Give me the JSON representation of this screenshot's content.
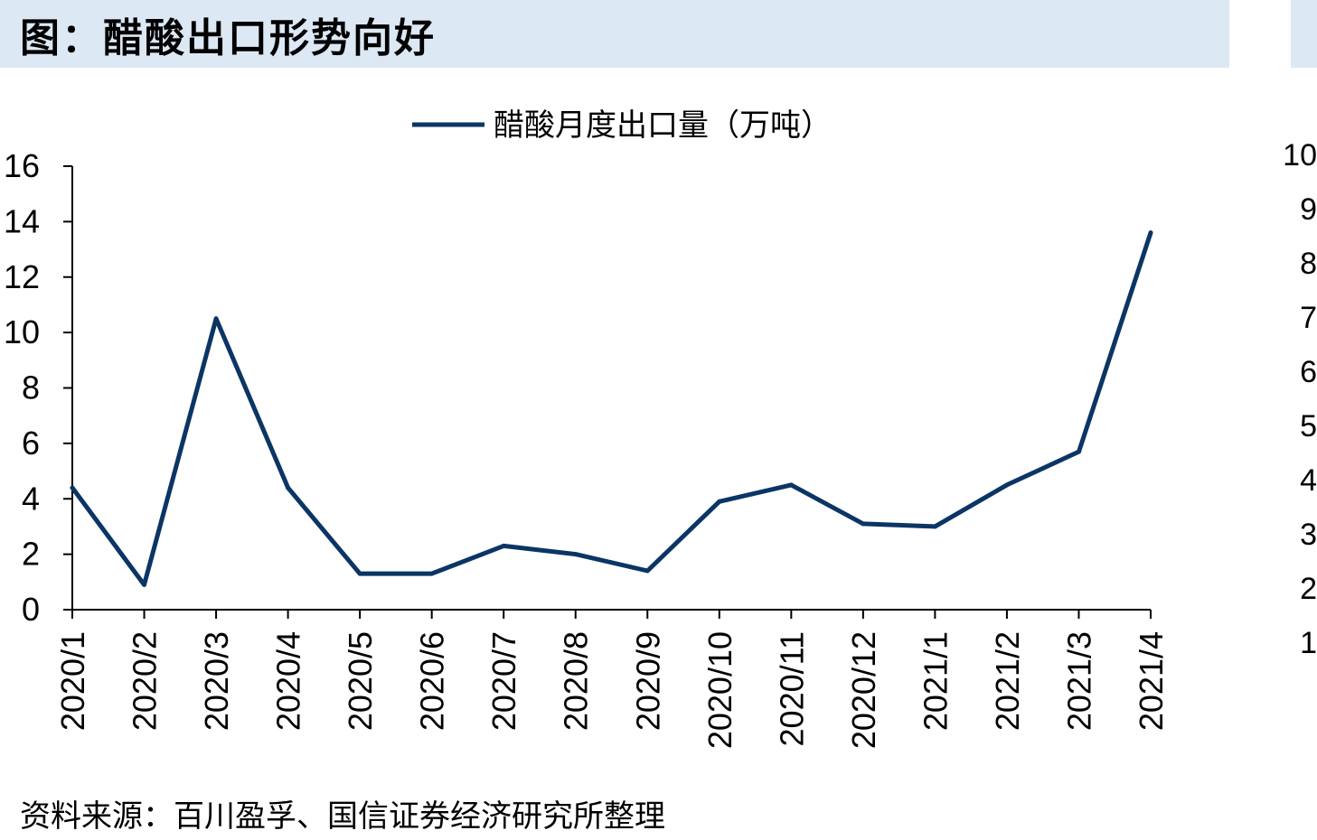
{
  "header": {
    "title": "图：醋酸出口形势向好"
  },
  "source": {
    "text": "资料来源：百川盈孚、国信证券经济研究所整理"
  },
  "colors": {
    "title_bg": "#dce8f4",
    "series": "#0b3565"
  },
  "right_axis": {
    "ticks": [
      "10",
      "9",
      "8",
      "7",
      "6",
      "5",
      "4",
      "3",
      "2",
      "1"
    ]
  },
  "chart_data": {
    "type": "line",
    "categories": [
      "2020/1",
      "2020/2",
      "2020/3",
      "2020/4",
      "2020/5",
      "2020/6",
      "2020/7",
      "2020/8",
      "2020/9",
      "2020/10",
      "2020/11",
      "2020/12",
      "2021/1",
      "2021/2",
      "2021/3",
      "2021/4"
    ],
    "series": [
      {
        "name": "醋酸月度出口量（万吨）",
        "values": [
          4.4,
          0.9,
          10.5,
          4.4,
          1.3,
          1.3,
          2.3,
          2.0,
          1.4,
          3.9,
          4.5,
          3.1,
          3.0,
          4.5,
          5.7,
          13.6
        ]
      }
    ],
    "ylim": [
      0,
      16
    ],
    "yticks": [
      0,
      2,
      4,
      6,
      8,
      10,
      12,
      14,
      16
    ],
    "legend_position": "top-center",
    "grid": false
  }
}
